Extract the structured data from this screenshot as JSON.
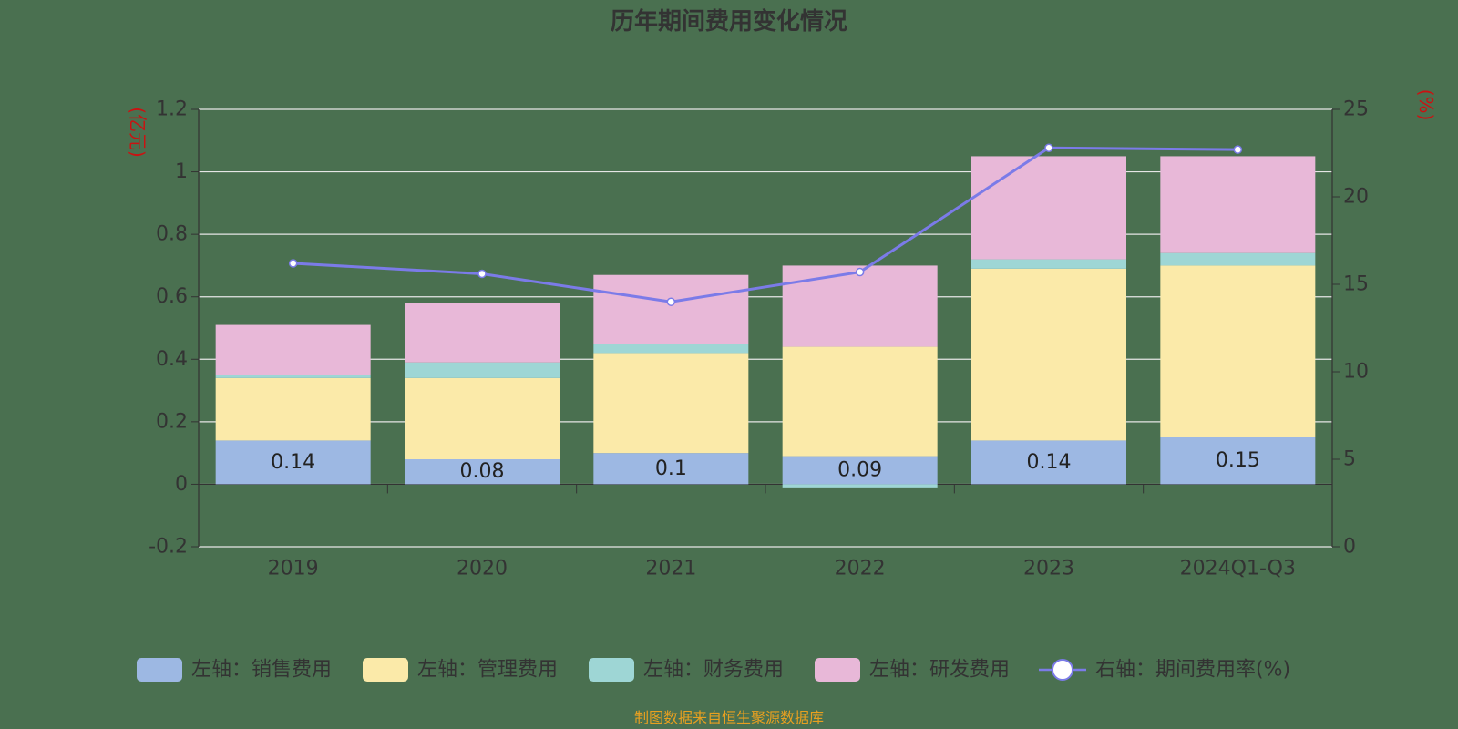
{
  "chart_data": {
    "type": "bar",
    "title": "历年期间费用变化情况",
    "categories": [
      "2019",
      "2020",
      "2021",
      "2022",
      "2023",
      "2024Q1-Q3"
    ],
    "left_axis": {
      "unit": "(亿元)",
      "ylim": [
        -0.2,
        1.2
      ],
      "ticks": [
        "-0.2",
        "0",
        "0.2",
        "0.4",
        "0.6",
        "0.8",
        "1",
        "1.2"
      ]
    },
    "right_axis": {
      "unit": "(%)",
      "ylim": [
        0,
        25
      ],
      "ticks": [
        "0",
        "5",
        "10",
        "15",
        "20",
        "25"
      ]
    },
    "grid": true,
    "legend_position": "bottom",
    "series": [
      {
        "name": "左轴：销售费用",
        "kind": "bar",
        "axis": "left",
        "color": "#9db8e3",
        "values": [
          0.14,
          0.08,
          0.1,
          0.09,
          0.14,
          0.15
        ],
        "labels": [
          "0.14",
          "0.08",
          "0.1",
          "0.09",
          "0.14",
          "0.15"
        ]
      },
      {
        "name": "左轴：管理费用",
        "kind": "bar",
        "axis": "left",
        "color": "#fbeaa9",
        "values": [
          0.2,
          0.26,
          0.32,
          0.35,
          0.55,
          0.55
        ]
      },
      {
        "name": "左轴：财务费用",
        "kind": "bar",
        "axis": "left",
        "color": "#9ed6d5",
        "values": [
          0.01,
          0.05,
          0.03,
          -0.01,
          0.03,
          0.04
        ]
      },
      {
        "name": "左轴：研发费用",
        "kind": "bar",
        "axis": "left",
        "color": "#e8b8d8",
        "values": [
          0.16,
          0.19,
          0.22,
          0.26,
          0.33,
          0.31
        ]
      },
      {
        "name": "右轴：期间费用率(%)",
        "kind": "line",
        "axis": "right",
        "color": "#7b7be8",
        "values": [
          16.2,
          15.6,
          14.0,
          15.7,
          22.8,
          22.7
        ]
      }
    ],
    "source": "制图数据来自恒生聚源数据库"
  }
}
